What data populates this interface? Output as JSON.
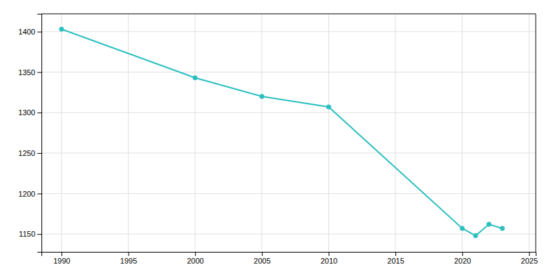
{
  "chart_data": {
    "type": "line",
    "x": [
      1990,
      2000,
      2005,
      2010,
      2020,
      2021,
      2022,
      2023
    ],
    "values": [
      1403,
      1343,
      1320,
      1307,
      1157,
      1148,
      1162,
      1157
    ],
    "color": "#2bbfbf",
    "marker": "circle",
    "xlim": [
      1988.5,
      2025.5
    ],
    "ylim": [
      1128,
      1422
    ],
    "xticks": [
      1990,
      1995,
      2000,
      2005,
      2010,
      2015,
      2020,
      2025
    ],
    "yticks": [
      1150,
      1200,
      1250,
      1300,
      1350,
      1400
    ],
    "grid": true
  }
}
